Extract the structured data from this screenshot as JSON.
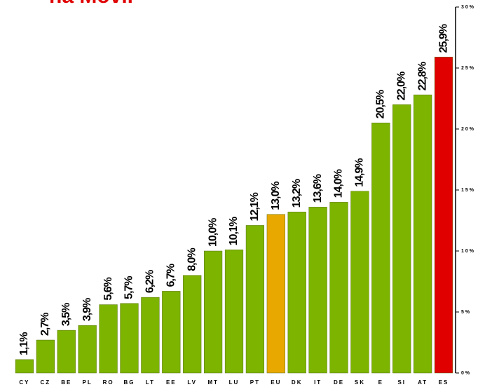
{
  "chart_data": {
    "type": "bar",
    "title": "na Móvil",
    "categories": [
      "CY",
      "CZ",
      "BE",
      "PL",
      "RO",
      "BG",
      "LT",
      "EE",
      "LV",
      "MT",
      "LU",
      "PT",
      "EU",
      "DK",
      "IT",
      "DE",
      "SK",
      "E",
      "SI",
      "AT",
      "ES"
    ],
    "values": [
      1.1,
      2.7,
      3.5,
      3.9,
      5.6,
      5.7,
      6.2,
      6.7,
      8.0,
      10.0,
      10.1,
      12.1,
      13.0,
      13.2,
      13.6,
      14.0,
      14.9,
      20.5,
      22.0,
      22.8,
      25.9
    ],
    "value_labels": [
      "1,1%",
      "2,7%",
      "3,5%",
      "3,9%",
      "5,6%",
      "5,7%",
      "6,2%",
      "6,7%",
      "8,0%",
      "10,0%",
      "10,1%",
      "12,1%",
      "13,0%",
      "13,2%",
      "13,6%",
      "14,0%",
      "14,9%",
      "20,5%",
      "22,0%",
      "22,8%",
      "25,9%"
    ],
    "colors": [
      "#7cb400",
      "#7cb400",
      "#7cb400",
      "#7cb400",
      "#7cb400",
      "#7cb400",
      "#7cb400",
      "#7cb400",
      "#7cb400",
      "#7cb400",
      "#7cb400",
      "#7cb400",
      "#e8a800",
      "#7cb400",
      "#7cb400",
      "#7cb400",
      "#7cb400",
      "#7cb400",
      "#7cb400",
      "#7cb400",
      "#e00000"
    ],
    "ylim": [
      0,
      30
    ],
    "yticks": [
      {
        "value": 0,
        "label": "0%"
      },
      {
        "value": 5,
        "label": "5%"
      },
      {
        "value": 10,
        "label": "10%"
      },
      {
        "value": 15,
        "label": "15%"
      },
      {
        "value": 20,
        "label": "20%"
      },
      {
        "value": 25,
        "label": "25%"
      },
      {
        "value": 30,
        "label": "30%"
      }
    ]
  }
}
